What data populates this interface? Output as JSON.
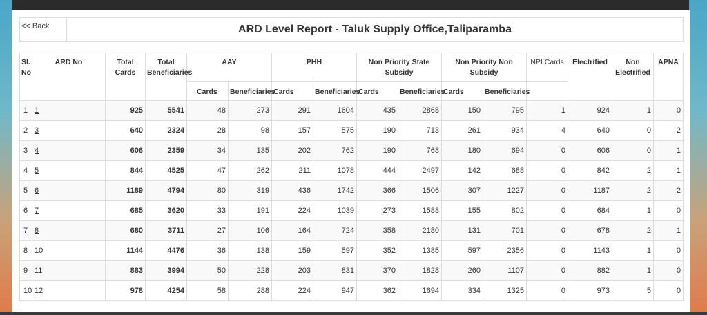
{
  "header": {
    "back_label": "<< Back",
    "title": "ARD Level Report - Taluk Supply Office,Taliparamba"
  },
  "table": {
    "columns": {
      "sl_no": "Sl. No",
      "ard_no": "ARD No",
      "total_cards": "Total Cards",
      "total_beneficiaries": "Total Beneficiaries",
      "aay": "AAY",
      "phh": "PHH",
      "nps": "Non Priority State Subsidy",
      "npns": "Non Priority Non Subsidy",
      "npi_cards": "NPI Cards",
      "electrified": "Electrified",
      "non_electrified": "Non Electrified",
      "apna": "APNA",
      "cards": "Cards",
      "beneficiaries": "Beneficiaries"
    },
    "rows": [
      {
        "sl": "1",
        "ard": "1",
        "total_cards": "925",
        "total_ben": "5541",
        "aay_c": "48",
        "aay_b": "273",
        "phh_c": "291",
        "phh_b": "1604",
        "nps_c": "435",
        "nps_b": "2868",
        "npns_c": "150",
        "npns_b": "795",
        "npi": "1",
        "elec": "924",
        "nonelec": "1",
        "apna": "0"
      },
      {
        "sl": "2",
        "ard": "3",
        "total_cards": "640",
        "total_ben": "2324",
        "aay_c": "28",
        "aay_b": "98",
        "phh_c": "157",
        "phh_b": "575",
        "nps_c": "190",
        "nps_b": "713",
        "npns_c": "261",
        "npns_b": "934",
        "npi": "4",
        "elec": "640",
        "nonelec": "0",
        "apna": "2"
      },
      {
        "sl": "3",
        "ard": "4",
        "total_cards": "606",
        "total_ben": "2359",
        "aay_c": "34",
        "aay_b": "135",
        "phh_c": "202",
        "phh_b": "762",
        "nps_c": "190",
        "nps_b": "768",
        "npns_c": "180",
        "npns_b": "694",
        "npi": "0",
        "elec": "606",
        "nonelec": "0",
        "apna": "1"
      },
      {
        "sl": "4",
        "ard": "5",
        "total_cards": "844",
        "total_ben": "4525",
        "aay_c": "47",
        "aay_b": "262",
        "phh_c": "211",
        "phh_b": "1078",
        "nps_c": "444",
        "nps_b": "2497",
        "npns_c": "142",
        "npns_b": "688",
        "npi": "0",
        "elec": "842",
        "nonelec": "2",
        "apna": "1"
      },
      {
        "sl": "5",
        "ard": "6",
        "total_cards": "1189",
        "total_ben": "4794",
        "aay_c": "80",
        "aay_b": "319",
        "phh_c": "436",
        "phh_b": "1742",
        "nps_c": "366",
        "nps_b": "1506",
        "npns_c": "307",
        "npns_b": "1227",
        "npi": "0",
        "elec": "1187",
        "nonelec": "2",
        "apna": "2"
      },
      {
        "sl": "6",
        "ard": "7",
        "total_cards": "685",
        "total_ben": "3620",
        "aay_c": "33",
        "aay_b": "191",
        "phh_c": "224",
        "phh_b": "1039",
        "nps_c": "273",
        "nps_b": "1588",
        "npns_c": "155",
        "npns_b": "802",
        "npi": "0",
        "elec": "684",
        "nonelec": "1",
        "apna": "0"
      },
      {
        "sl": "7",
        "ard": "8",
        "total_cards": "680",
        "total_ben": "3711",
        "aay_c": "27",
        "aay_b": "106",
        "phh_c": "164",
        "phh_b": "724",
        "nps_c": "358",
        "nps_b": "2180",
        "npns_c": "131",
        "npns_b": "701",
        "npi": "0",
        "elec": "678",
        "nonelec": "2",
        "apna": "1"
      },
      {
        "sl": "8",
        "ard": "10",
        "total_cards": "1144",
        "total_ben": "4476",
        "aay_c": "36",
        "aay_b": "138",
        "phh_c": "159",
        "phh_b": "597",
        "nps_c": "352",
        "nps_b": "1385",
        "npns_c": "597",
        "npns_b": "2356",
        "npi": "0",
        "elec": "1143",
        "nonelec": "1",
        "apna": "0"
      },
      {
        "sl": "9",
        "ard": "11",
        "total_cards": "883",
        "total_ben": "3994",
        "aay_c": "50",
        "aay_b": "228",
        "phh_c": "203",
        "phh_b": "831",
        "nps_c": "370",
        "nps_b": "1828",
        "npns_c": "260",
        "npns_b": "1107",
        "npi": "0",
        "elec": "882",
        "nonelec": "1",
        "apna": "0"
      },
      {
        "sl": "10",
        "ard": "12",
        "total_cards": "978",
        "total_ben": "4254",
        "aay_c": "58",
        "aay_b": "288",
        "phh_c": "224",
        "phh_b": "947",
        "nps_c": "362",
        "nps_b": "1694",
        "npns_c": "334",
        "npns_b": "1325",
        "npi": "0",
        "elec": "973",
        "nonelec": "5",
        "apna": "0"
      }
    ]
  }
}
